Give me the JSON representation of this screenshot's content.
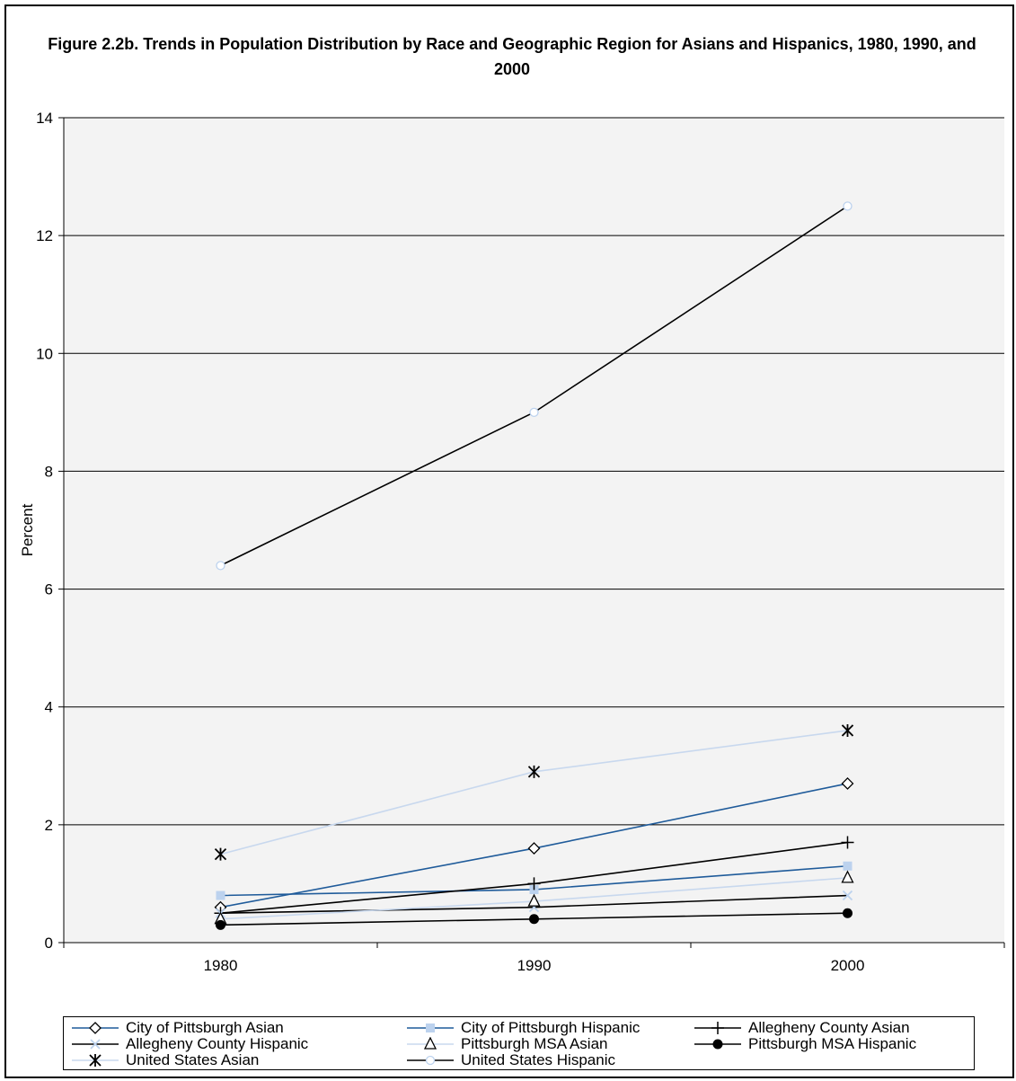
{
  "chart_data": {
    "type": "line",
    "title": "Figure 2.2b. Trends in Population Distribution by Race and Geographic Region for Asians and Hispanics, 1980, 1990, and 2000",
    "xlabel": "",
    "ylabel": "Percent",
    "categories": [
      "1980",
      "1990",
      "2000"
    ],
    "ylim": [
      0,
      14
    ],
    "yticks": [
      0,
      2,
      4,
      6,
      8,
      10,
      12,
      14
    ],
    "grid": true,
    "legend_position": "bottom",
    "series": [
      {
        "name": "City of Pittsburgh Asian",
        "values": [
          0.6,
          1.6,
          2.7
        ],
        "color": "#1f5b9a",
        "marker": "diamond-open"
      },
      {
        "name": "City of Pittsburgh Hispanic",
        "values": [
          0.8,
          0.9,
          1.3
        ],
        "color": "#1f5b9a",
        "marker": "square-filled",
        "marker_color": "#bcd2ee"
      },
      {
        "name": "Allegheny County Asian",
        "values": [
          0.5,
          1.0,
          1.7
        ],
        "color": "#000000",
        "marker": "plus"
      },
      {
        "name": "Allegheny County Hispanic",
        "values": [
          0.5,
          0.6,
          0.8
        ],
        "color": "#000000",
        "marker": "x",
        "marker_color": "#bcd2ee"
      },
      {
        "name": "Pittsburgh MSA Asian",
        "values": [
          0.4,
          0.7,
          1.1
        ],
        "color": "#c8d8ee",
        "marker": "triangle-open",
        "marker_color": "#000000"
      },
      {
        "name": "Pittsburgh MSA Hispanic",
        "values": [
          0.3,
          0.4,
          0.5
        ],
        "color": "#000000",
        "marker": "circle-filled"
      },
      {
        "name": "United States Asian",
        "values": [
          1.5,
          2.9,
          3.6
        ],
        "color": "#c8d8ee",
        "marker": "asterisk",
        "marker_color": "#000000"
      },
      {
        "name": "United States Hispanic",
        "values": [
          6.4,
          9.0,
          12.5
        ],
        "color": "#000000",
        "marker": "circle-open",
        "marker_color": "#bcd2ee"
      }
    ],
    "colors": {
      "plot_background": "#f3f3f3",
      "gridline": "#000000"
    }
  }
}
